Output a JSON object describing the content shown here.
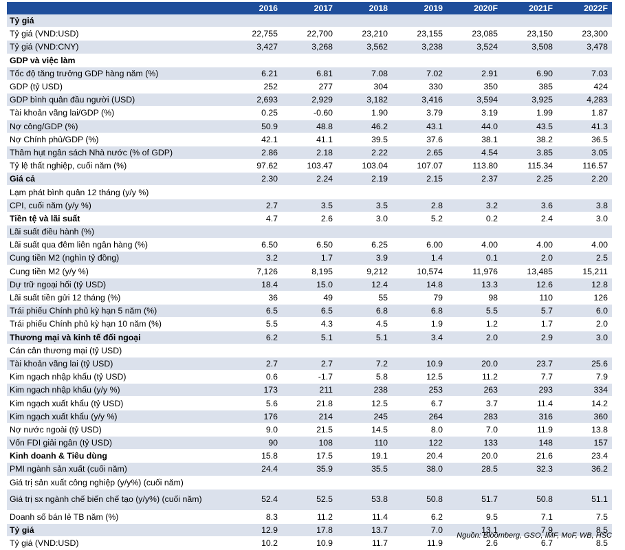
{
  "years": [
    "2016",
    "2017",
    "2018",
    "2019",
    "2020F",
    "2021F",
    "2022F"
  ],
  "rows": [
    {
      "label": "Tỷ giá",
      "section": true,
      "values": [
        "",
        "",
        "",
        "",
        "",
        "",
        ""
      ]
    },
    {
      "label": "Tỷ giá (VND:USD)",
      "values": [
        "22,755",
        "22,700",
        "23,210",
        "23,155",
        "23,085",
        "23,150",
        "23,300"
      ]
    },
    {
      "label": "Tỷ giá (VND:CNY)",
      "values": [
        "3,427",
        "3,268",
        "3,562",
        "3,238",
        "3,524",
        "3,508",
        "3,478"
      ]
    },
    {
      "label": "GDP và việc làm",
      "section": true,
      "values": [
        "",
        "",
        "",
        "",
        "",
        "",
        ""
      ]
    },
    {
      "label": "Tốc độ tăng trưởng GDP hàng năm (%)",
      "values": [
        "6.21",
        "6.81",
        "7.08",
        "7.02",
        "2.91",
        "6.90",
        "7.03"
      ]
    },
    {
      "label": "GDP (tỷ USD)",
      "values": [
        "252",
        "277",
        "304",
        "330",
        "350",
        "385",
        "424"
      ]
    },
    {
      "label": "GDP bình quân đầu người (USD)",
      "values": [
        "2,693",
        "2,929",
        "3,182",
        "3,416",
        "3,594",
        "3,925",
        "4,283"
      ]
    },
    {
      "label": "Tài khoản vãng lai/GDP (%)",
      "values": [
        "0.25",
        "-0.60",
        "1.90",
        "3.79",
        "3.19",
        "1.99",
        "1.87"
      ]
    },
    {
      "label": "Nợ công/GDP (%)",
      "values": [
        "50.9",
        "48.8",
        "46.2",
        "43.1",
        "44.0",
        "43.5",
        "41.3"
      ]
    },
    {
      "label": "Nợ Chính phủ/GDP (%)",
      "values": [
        "42.1",
        "41.1",
        "39.5",
        "37.6",
        "38.1",
        "38.2",
        "36.5"
      ]
    },
    {
      "label": "Thâm hụt ngân sách Nhà nước (% of GDP)",
      "values": [
        "2.86",
        "2.18",
        "2.22",
        "2.65",
        "4.54",
        "3.85",
        "3.05"
      ]
    },
    {
      "label": "Tỷ lệ thất nghiệp, cuối năm (%)",
      "values": [
        "97.62",
        "103.47",
        "103.04",
        "107.07",
        "113.80",
        "115.34",
        "116.57"
      ]
    },
    {
      "label": "Giá cả",
      "section": true,
      "values": [
        "2.30",
        "2.24",
        "2.19",
        "2.15",
        "2.37",
        "2.25",
        "2.20"
      ]
    },
    {
      "label": "Lạm phát bình quân 12 tháng (y/y %)",
      "values": [
        "",
        "",
        "",
        "",
        "",
        "",
        ""
      ]
    },
    {
      "label": "CPI, cuối năm (y/y %)",
      "values": [
        "2.7",
        "3.5",
        "3.5",
        "2.8",
        "3.2",
        "3.6",
        "3.8"
      ]
    },
    {
      "label": "Tiền tệ và lãi suất",
      "section": true,
      "values": [
        "4.7",
        "2.6",
        "3.0",
        "5.2",
        "0.2",
        "2.4",
        "3.0"
      ]
    },
    {
      "label": "Lãi suất điều hành (%)",
      "values": [
        "",
        "",
        "",
        "",
        "",
        "",
        ""
      ]
    },
    {
      "label": "Lãi suất qua đêm liên ngân hàng (%)",
      "values": [
        "6.50",
        "6.50",
        "6.25",
        "6.00",
        "4.00",
        "4.00",
        "4.00"
      ]
    },
    {
      "label": "Cung tiền M2 (nghìn tỷ đồng)",
      "values": [
        "3.2",
        "1.7",
        "3.9",
        "1.4",
        "0.1",
        "2.0",
        "2.5"
      ]
    },
    {
      "label": "Cung tiền M2 (y/y %)",
      "values": [
        "7,126",
        "8,195",
        "9,212",
        "10,574",
        "11,976",
        "13,485",
        "15,211"
      ]
    },
    {
      "label": "Dự trữ ngoại hối (tỷ USD)",
      "values": [
        "18.4",
        "15.0",
        "12.4",
        "14.8",
        "13.3",
        "12.6",
        "12.8"
      ]
    },
    {
      "label": "Lãi suất tiền gửi 12 tháng (%)",
      "values": [
        "36",
        "49",
        "55",
        "79",
        "98",
        "110",
        "126"
      ]
    },
    {
      "label": "Trái phiếu Chính phủ kỳ hạn 5 năm (%)",
      "values": [
        "6.5",
        "6.5",
        "6.8",
        "6.8",
        "5.5",
        "5.7",
        "6.0"
      ]
    },
    {
      "label": "Trái phiếu Chính phủ kỳ hạn 10 năm (%)",
      "values": [
        "5.5",
        "4.3",
        "4.5",
        "1.9",
        "1.2",
        "1.7",
        "2.0"
      ]
    },
    {
      "label": "Thương mại và kinh tế đối ngoại",
      "section": true,
      "values": [
        "6.2",
        "5.1",
        "5.1",
        "3.4",
        "2.0",
        "2.9",
        "3.0"
      ]
    },
    {
      "label": "Cán cân thương mại (tỷ USD)",
      "values": [
        "",
        "",
        "",
        "",
        "",
        "",
        ""
      ]
    },
    {
      "label": "Tài khoản vãng lai (tỷ USD)",
      "values": [
        "2.7",
        "2.7",
        "7.2",
        "10.9",
        "20.0",
        "23.7",
        "25.6"
      ]
    },
    {
      "label": "Kim ngạch nhập khẩu (tỷ USD)",
      "values": [
        "0.6",
        "-1.7",
        "5.8",
        "12.5",
        "11.2",
        "7.7",
        "7.9"
      ]
    },
    {
      "label": "Kim ngạch nhập khẩu (y/y %)",
      "values": [
        "173",
        "211",
        "238",
        "253",
        "263",
        "293",
        "334"
      ]
    },
    {
      "label": "Kim ngạch xuất khẩu (tỷ USD)",
      "values": [
        "5.6",
        "21.8",
        "12.5",
        "6.7",
        "3.7",
        "11.4",
        "14.2"
      ]
    },
    {
      "label": "Kim ngạch xuất khẩu (y/y %)",
      "values": [
        "176",
        "214",
        "245",
        "264",
        "283",
        "316",
        "360"
      ]
    },
    {
      "label": "Nợ nước ngoài (tỷ USD)",
      "values": [
        "9.0",
        "21.5",
        "14.5",
        "8.0",
        "7.0",
        "11.9",
        "13.8"
      ]
    },
    {
      "label": "Vốn FDI giải ngân (tỷ USD)",
      "values": [
        "90",
        "108",
        "110",
        "122",
        "133",
        "148",
        "157"
      ]
    },
    {
      "label": "Kinh doanh & Tiêu dùng",
      "section": true,
      "values": [
        "15.8",
        "17.5",
        "19.1",
        "20.4",
        "20.0",
        "21.6",
        "23.4"
      ]
    },
    {
      "label": "PMI ngành sản xuất (cuối năm)",
      "values": [
        "24.4",
        "35.9",
        "35.5",
        "38.0",
        "28.5",
        "32.3",
        "36.2"
      ]
    },
    {
      "label": "Giá trị sản xuất công nghiệp (y/y%) (cuối năm)",
      "values": [
        "",
        "",
        "",
        "",
        "",
        "",
        ""
      ]
    },
    {
      "label": "Giá trị sx ngành chế biến chế tạo (y/y%) (cuối năm)",
      "tall": true,
      "values": [
        "52.4",
        "52.5",
        "53.8",
        "50.8",
        "51.7",
        "50.8",
        "51.1"
      ]
    },
    {
      "label": "Doanh số bán lẻ TB năm (%)",
      "values": [
        "8.3",
        "11.2",
        "11.4",
        "6.2",
        "9.5",
        "7.1",
        "7.5"
      ]
    },
    {
      "label": "Tỷ giá",
      "section": true,
      "values": [
        "12.9",
        "17.8",
        "13.7",
        "7.0",
        "13.1",
        "7.9",
        "8.5"
      ]
    },
    {
      "label": "Tỷ giá (VND:USD)",
      "values": [
        "10.2",
        "10.9",
        "11.7",
        "11.9",
        "2.6",
        "6.7",
        "8.5"
      ]
    }
  ],
  "source": "Nguồn: Bloomberg, GSO, IMF, MoF, WB, HSC"
}
